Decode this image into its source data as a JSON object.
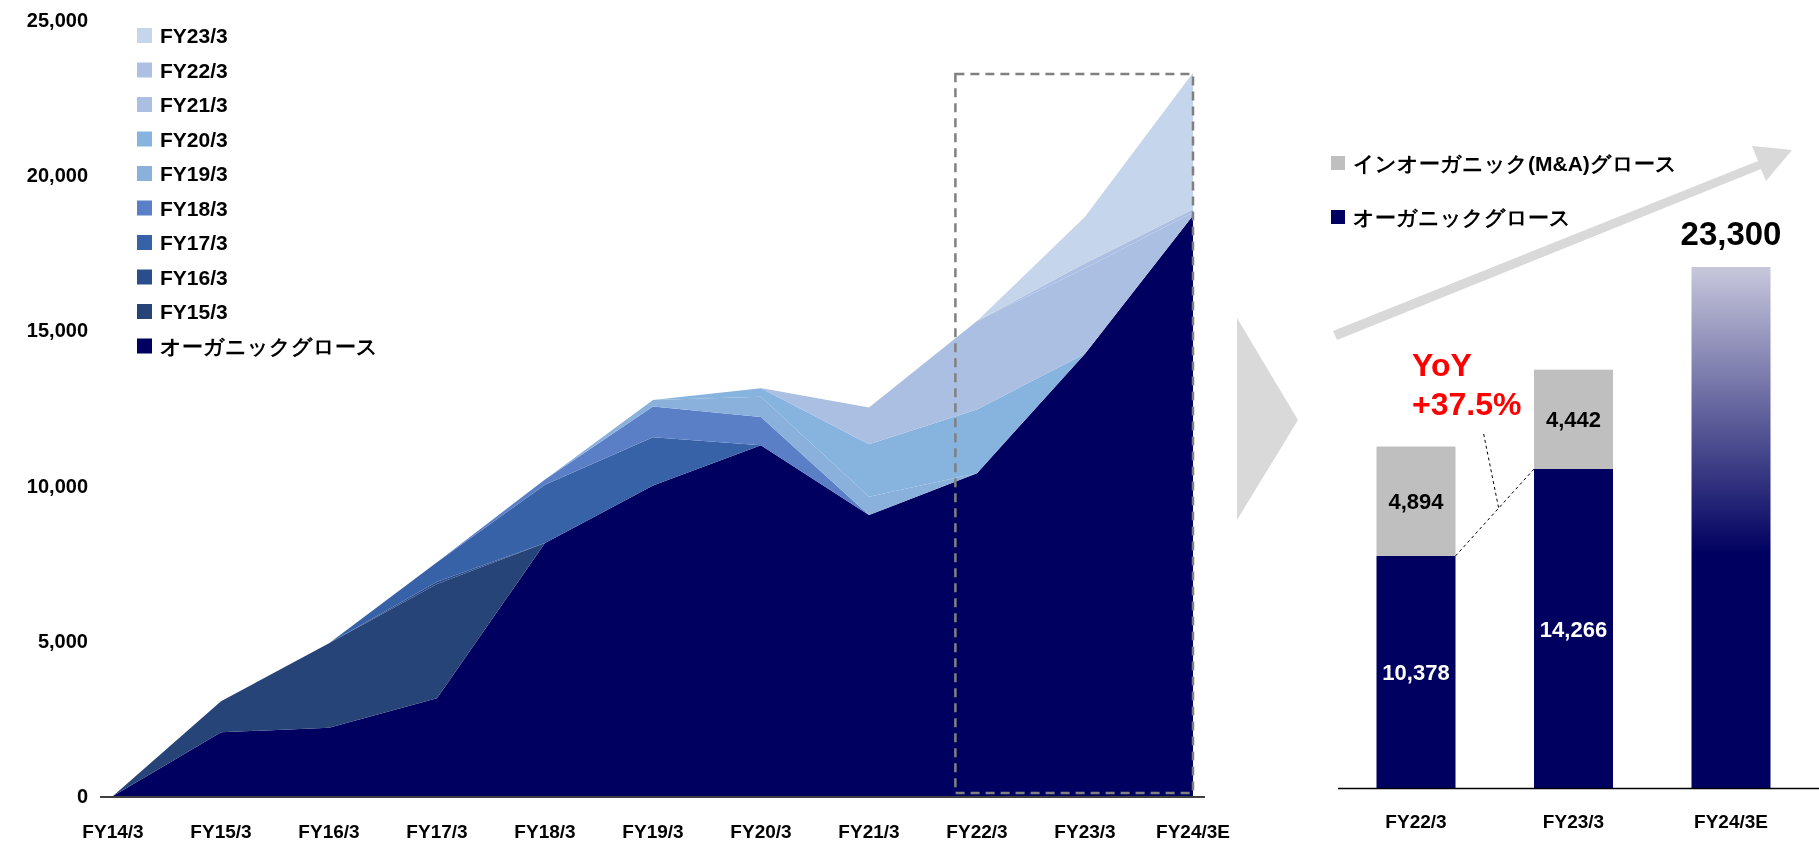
{
  "chart_data": [
    {
      "type": "area",
      "stacked": true,
      "legend": "top left",
      "grid": false,
      "categories": [
        "FY14/3",
        "FY15/3",
        "FY16/3",
        "FY17/3",
        "FY18/3",
        "FY19/3",
        "FY20/3",
        "FY21/3",
        "FY22/3",
        "FY23/3",
        "FY24/3E"
      ],
      "ylim": [
        0,
        25000
      ],
      "yticks": [
        0,
        {
          "value": 5000,
          "label": "5,000"
        },
        {
          "value": 10000,
          "label": "10,000"
        },
        {
          "value": 15000,
          "label": "15,000"
        },
        {
          "value": 20000,
          "label": "20,000"
        },
        {
          "value": 25000,
          "label": "25,000"
        }
      ],
      "series": [
        {
          "name": "オーガニックグロース",
          "color": "#000060",
          "values": [
            0,
            2050,
            2200,
            3150,
            8150,
            10000,
            11300,
            9050,
            10400,
            14250,
            18700
          ]
        },
        {
          "name": "FY15/3",
          "color": "#264478",
          "values": [
            0,
            1000,
            2720,
            3680,
            0,
            null,
            null,
            null,
            null,
            null,
            null
          ]
        },
        {
          "name": "FY16/3",
          "color": "#2c4d8c",
          "values": [
            null,
            null,
            0,
            70,
            0,
            null,
            null,
            null,
            null,
            null,
            null
          ]
        },
        {
          "name": "FY17/3",
          "color": "#3762a8",
          "values": [
            null,
            null,
            0,
            630,
            1880,
            1560,
            0,
            null,
            null,
            null,
            null
          ]
        },
        {
          "name": "FY18/3",
          "color": "#5a7fc6",
          "values": [
            null,
            null,
            null,
            0,
            170,
            990,
            910,
            0,
            null,
            null,
            null
          ]
        },
        {
          "name": "FY19/3",
          "color": "#8ab0dc",
          "values": [
            null,
            null,
            null,
            null,
            0,
            210,
            650,
            590,
            0,
            null,
            null
          ]
        },
        {
          "name": "FY20/3",
          "color": "#86b4de",
          "values": [
            null,
            null,
            null,
            null,
            null,
            0,
            280,
            1690,
            2050,
            0,
            null
          ]
        },
        {
          "name": "FY21/3",
          "color": "#abbfe3",
          "values": [
            null,
            null,
            null,
            null,
            null,
            null,
            0,
            1190,
            2850,
            2750,
            100
          ]
        },
        {
          "name": "FY22/3",
          "color": "#adc0e3",
          "values": [
            null,
            null,
            null,
            null,
            null,
            null,
            null,
            null,
            0,
            160,
            100
          ]
        },
        {
          "name": "FY23/3",
          "color": "#c5d5ec",
          "values": [
            null,
            null,
            null,
            null,
            null,
            null,
            null,
            null,
            0,
            1500,
            4400
          ]
        }
      ]
    },
    {
      "type": "bar",
      "stacked": true,
      "legend": "top left",
      "categories": [
        "FY22/3",
        "FY23/3",
        "FY24/3E"
      ],
      "series": [
        {
          "name": "オーガニックグロース",
          "color": "#000060",
          "values": [
            10378,
            14266,
            null
          ],
          "value_labels": [
            "10,378",
            "14,266",
            null
          ]
        },
        {
          "name": "インオーガニック(M&A)グロース",
          "color": "#bfbfbf",
          "values": [
            4894,
            4442,
            null
          ],
          "value_labels": [
            "4,894",
            "4,442",
            null
          ]
        },
        {
          "color": "#000060",
          "values": [
            null,
            null,
            23300
          ],
          "value_labels": [
            null,
            null,
            "23,300"
          ]
        }
      ],
      "annotations": [
        "YoY\n+37.5%"
      ]
    }
  ]
}
